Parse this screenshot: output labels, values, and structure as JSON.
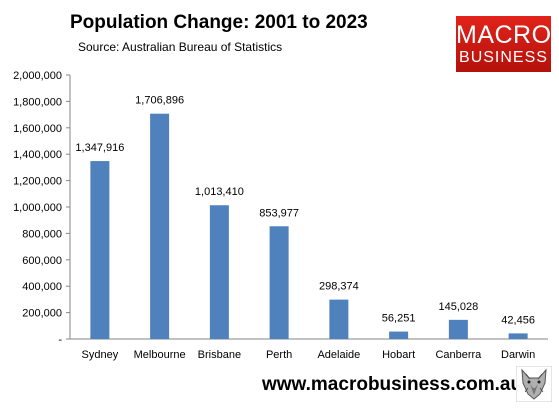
{
  "header": {
    "title": "Population Change: 2001 to 2023",
    "subtitle": "Source: Australian Bureau of Statistics"
  },
  "logo": {
    "line1": "MACRO",
    "line2": "BUSINESS",
    "icon": "wolf-head-icon"
  },
  "footer": {
    "url": "www.macrobusiness.com.au"
  },
  "colors": {
    "bar": "#4f81bd",
    "brand_red": "#d71f16"
  },
  "chart_data": {
    "type": "bar",
    "title": "Population Change: 2001 to 2023",
    "subtitle": "Source: Australian Bureau of Statistics",
    "categories": [
      "Sydney",
      "Melbourne",
      "Brisbane",
      "Perth",
      "Adelaide",
      "Hobart",
      "Canberra",
      "Darwin"
    ],
    "values": [
      1347916,
      1706896,
      1013410,
      853977,
      298374,
      56251,
      145028,
      42456
    ],
    "data_labels": [
      "1,347,916",
      "1,706,896",
      "1,013,410",
      "853,977",
      "298,374",
      "56,251",
      "145,028",
      "42,456"
    ],
    "ylim": [
      0,
      2000000
    ],
    "yticks": [
      0,
      200000,
      400000,
      600000,
      800000,
      1000000,
      1200000,
      1400000,
      1600000,
      1800000,
      2000000
    ],
    "ytick_labels": [
      "-",
      "200,000",
      "400,000",
      "600,000",
      "800,000",
      "1,000,000",
      "1,200,000",
      "1,400,000",
      "1,600,000",
      "1,800,000",
      "2,000,000"
    ],
    "grid": false,
    "legend": "none"
  }
}
